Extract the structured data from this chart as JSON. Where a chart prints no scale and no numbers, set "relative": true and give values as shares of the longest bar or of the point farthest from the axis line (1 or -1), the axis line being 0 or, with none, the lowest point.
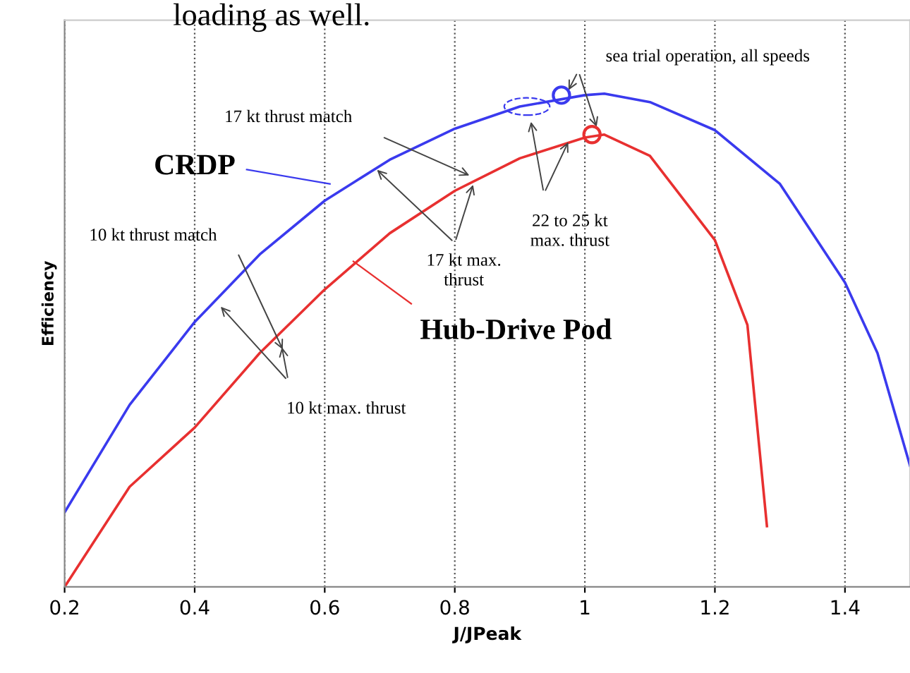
{
  "chart_data": {
    "type": "line",
    "relative": true,
    "xlabel": "J/JPeak",
    "ylabel": "Efficiency",
    "xlim": [
      0.2,
      1.5
    ],
    "xticks": [
      0.2,
      0.4,
      0.6,
      0.8,
      1,
      1.2,
      1.4
    ],
    "grid": "x",
    "line_style": "solid",
    "series": [
      {
        "name": "CRDP",
        "color": "#3a3aee",
        "x": [
          0.2,
          0.3,
          0.4,
          0.5,
          0.6,
          0.7,
          0.8,
          0.9,
          1.0,
          1.03,
          1.1,
          1.2,
          1.3,
          1.4,
          1.45,
          1.5
        ],
        "values": [
          0.151,
          0.369,
          0.537,
          0.674,
          0.783,
          0.866,
          0.929,
          0.974,
          0.997,
          1.0,
          0.983,
          0.926,
          0.817,
          0.617,
          0.474,
          0.246
        ]
      },
      {
        "name": "Hub-Drive Pod",
        "color": "#e83030",
        "x": [
          0.2,
          0.3,
          0.4,
          0.5,
          0.6,
          0.7,
          0.8,
          0.9,
          1.0,
          1.03,
          1.1,
          1.2,
          1.25,
          1.28
        ],
        "values": [
          0.0,
          0.203,
          0.323,
          0.474,
          0.603,
          0.717,
          0.803,
          0.869,
          0.911,
          0.917,
          0.874,
          0.703,
          0.531,
          0.123
        ]
      },
      {
        "type": "scatter",
        "marker": "circle",
        "color": "#3a3aee",
        "x": [
          0.964
        ],
        "values": [
          0.997
        ]
      },
      {
        "type": "scatter",
        "marker": "circle",
        "color": "#e83030",
        "x": [
          1.011
        ],
        "values": [
          0.917
        ]
      }
    ],
    "annotations": [
      "sea trial operation, all speeds",
      "17 kt thrust match",
      "17 kt max.\nthrust",
      "22 to 25 kt\nmax. thrust",
      "10 kt thrust match",
      "10 kt max. thrust",
      "loading as well."
    ]
  }
}
